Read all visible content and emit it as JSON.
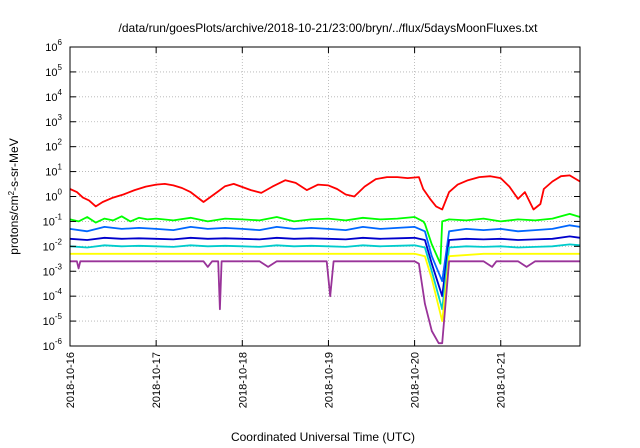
{
  "chart_data": {
    "type": "line",
    "title": "/data/run/goesPlots/archive/2018-10-21/23:00/bryn/../flux/5daysMoonFluxes.txt",
    "xlabel": "Coordinated Universal Time (UTC)",
    "ylabel": "protons/cm2-s-sr-MeV",
    "ylabel_parts": [
      "protons/cm",
      "2",
      "-s-sr-MeV"
    ],
    "y_scale": "log",
    "ylim": [
      1e-06,
      1000000.0
    ],
    "y_ticks": [
      {
        "value": 1e-06,
        "label": "10",
        "exp": "-6"
      },
      {
        "value": 1e-05,
        "label": "10",
        "exp": "-5"
      },
      {
        "value": 0.0001,
        "label": "10",
        "exp": "-4"
      },
      {
        "value": 0.001,
        "label": "10",
        "exp": "-3"
      },
      {
        "value": 0.01,
        "label": "10",
        "exp": "-2"
      },
      {
        "value": 0.1,
        "label": "10",
        "exp": "-1"
      },
      {
        "value": 1.0,
        "label": "10",
        "exp": "0"
      },
      {
        "value": 10.0,
        "label": "10",
        "exp": "1"
      },
      {
        "value": 100.0,
        "label": "10",
        "exp": "2"
      },
      {
        "value": 1000.0,
        "label": "10",
        "exp": "3"
      },
      {
        "value": 10000.0,
        "label": "10",
        "exp": "4"
      },
      {
        "value": 100000.0,
        "label": "10",
        "exp": "5"
      },
      {
        "value": 1000000.0,
        "label": "10",
        "exp": "6"
      }
    ],
    "xlim": [
      0,
      5.92
    ],
    "x_ticks": [
      {
        "value": 0,
        "label": "2018-10-16"
      },
      {
        "value": 1,
        "label": "2018-10-17"
      },
      {
        "value": 2,
        "label": "2018-10-18"
      },
      {
        "value": 3,
        "label": "2018-10-19"
      },
      {
        "value": 4,
        "label": "2018-10-20"
      },
      {
        "value": 5,
        "label": "2018-10-21"
      }
    ],
    "grid": true,
    "series": [
      {
        "color": "#ff0000",
        "x": [
          0,
          0.08,
          0.15,
          0.22,
          0.3,
          0.38,
          0.5,
          0.62,
          0.75,
          0.88,
          1.0,
          1.1,
          1.2,
          1.3,
          1.4,
          1.55,
          1.62,
          1.72,
          1.8,
          1.9,
          2.0,
          2.1,
          2.22,
          2.35,
          2.5,
          2.62,
          2.75,
          2.88,
          3.0,
          3.1,
          3.2,
          3.3,
          3.42,
          3.55,
          3.68,
          3.8,
          3.92,
          4.05,
          4.1,
          4.18,
          4.25,
          4.32,
          4.4,
          4.5,
          4.62,
          4.75,
          4.88,
          5.0,
          5.1,
          5.2,
          5.28,
          5.38,
          5.46,
          5.5,
          5.6,
          5.7,
          5.8,
          5.92
        ],
        "values": [
          2.0,
          1.5,
          0.9,
          0.7,
          0.4,
          0.6,
          0.9,
          1.2,
          1.8,
          2.5,
          3.0,
          3.2,
          2.8,
          2.2,
          1.5,
          0.6,
          0.9,
          1.6,
          2.6,
          3.2,
          2.4,
          1.8,
          1.4,
          2.5,
          4.5,
          3.5,
          1.8,
          3.0,
          2.8,
          2.0,
          1.2,
          1.0,
          2.5,
          5.0,
          6.0,
          6.0,
          5.5,
          6.0,
          2.0,
          0.8,
          0.4,
          0.3,
          1.5,
          3.0,
          4.5,
          6.0,
          6.5,
          5.5,
          2.5,
          0.8,
          1.5,
          0.3,
          0.5,
          2.0,
          4.0,
          6.5,
          7.0,
          4.0
        ]
      },
      {
        "color": "#00ff00",
        "x": [
          0,
          0.1,
          0.2,
          0.3,
          0.4,
          0.5,
          0.6,
          0.7,
          0.8,
          0.9,
          1.0,
          1.2,
          1.4,
          1.6,
          1.8,
          2.0,
          2.2,
          2.4,
          2.6,
          2.8,
          3.0,
          3.2,
          3.4,
          3.6,
          3.8,
          4.0,
          4.1,
          4.12,
          4.2,
          4.3,
          4.32,
          4.4,
          4.6,
          4.8,
          5.0,
          5.2,
          5.4,
          5.6,
          5.8,
          5.92
        ],
        "values": [
          0.12,
          0.1,
          0.15,
          0.09,
          0.13,
          0.11,
          0.16,
          0.1,
          0.14,
          0.12,
          0.13,
          0.11,
          0.14,
          0.1,
          0.13,
          0.12,
          0.11,
          0.15,
          0.1,
          0.12,
          0.13,
          0.11,
          0.14,
          0.12,
          0.13,
          0.15,
          0.1,
          0.08,
          0.012,
          0.002,
          0.1,
          0.12,
          0.11,
          0.13,
          0.1,
          0.12,
          0.11,
          0.13,
          0.2,
          0.15
        ]
      },
      {
        "color": "#0066ff",
        "x": [
          0,
          0.2,
          0.4,
          0.6,
          0.8,
          1.0,
          1.2,
          1.4,
          1.6,
          1.8,
          2.0,
          2.2,
          2.4,
          2.6,
          2.8,
          3.0,
          3.2,
          3.4,
          3.6,
          3.8,
          4.0,
          4.12,
          4.2,
          4.32,
          4.4,
          4.6,
          4.8,
          5.0,
          5.2,
          5.4,
          5.6,
          5.8,
          5.92
        ],
        "values": [
          0.05,
          0.04,
          0.06,
          0.05,
          0.055,
          0.05,
          0.045,
          0.06,
          0.05,
          0.055,
          0.05,
          0.045,
          0.06,
          0.05,
          0.055,
          0.05,
          0.045,
          0.06,
          0.05,
          0.055,
          0.06,
          0.04,
          0.004,
          0.0004,
          0.04,
          0.05,
          0.045,
          0.05,
          0.04,
          0.045,
          0.05,
          0.07,
          0.06
        ]
      },
      {
        "color": "#0000cc",
        "x": [
          0,
          0.2,
          0.4,
          0.6,
          0.8,
          1.0,
          1.2,
          1.4,
          1.6,
          1.8,
          2.0,
          2.2,
          2.4,
          2.6,
          2.8,
          3.0,
          3.2,
          3.4,
          3.6,
          3.8,
          4.0,
          4.12,
          4.2,
          4.32,
          4.4,
          4.6,
          4.8,
          5.0,
          5.2,
          5.4,
          5.6,
          5.8,
          5.92
        ],
        "values": [
          0.02,
          0.018,
          0.022,
          0.02,
          0.021,
          0.02,
          0.019,
          0.022,
          0.02,
          0.021,
          0.02,
          0.019,
          0.022,
          0.02,
          0.021,
          0.02,
          0.019,
          0.022,
          0.02,
          0.021,
          0.022,
          0.018,
          0.002,
          0.0001,
          0.018,
          0.02,
          0.019,
          0.02,
          0.018,
          0.019,
          0.02,
          0.025,
          0.022
        ]
      },
      {
        "color": "#00cccc",
        "x": [
          0,
          0.2,
          0.4,
          0.6,
          0.8,
          1.0,
          1.2,
          1.4,
          1.6,
          1.8,
          2.0,
          2.2,
          2.4,
          2.6,
          2.8,
          3.0,
          3.2,
          3.4,
          3.6,
          3.8,
          4.0,
          4.12,
          4.2,
          4.32,
          4.4,
          4.6,
          4.8,
          5.0,
          5.2,
          5.4,
          5.6,
          5.8,
          5.92
        ],
        "values": [
          0.01,
          0.009,
          0.011,
          0.01,
          0.0105,
          0.01,
          0.0095,
          0.011,
          0.01,
          0.0105,
          0.01,
          0.0095,
          0.011,
          0.01,
          0.0105,
          0.01,
          0.0095,
          0.011,
          0.01,
          0.0105,
          0.011,
          0.009,
          0.001,
          3e-05,
          0.009,
          0.01,
          0.0095,
          0.01,
          0.009,
          0.0095,
          0.01,
          0.012,
          0.011
        ]
      },
      {
        "color": "#ffff00",
        "x": [
          0,
          0.5,
          1.0,
          1.5,
          2.0,
          2.5,
          3.0,
          3.5,
          4.0,
          4.12,
          4.2,
          4.32,
          4.4,
          4.8,
          5.2,
          5.6,
          5.92
        ],
        "values": [
          0.005,
          0.005,
          0.005,
          0.005,
          0.005,
          0.005,
          0.005,
          0.005,
          0.005,
          0.004,
          0.0005,
          1e-05,
          0.004,
          0.005,
          0.005,
          0.005,
          0.005
        ]
      },
      {
        "color": "#993399",
        "x": [
          0,
          0.08,
          0.1,
          0.12,
          0.3,
          0.5,
          0.7,
          0.9,
          1.0,
          1.2,
          1.4,
          1.55,
          1.6,
          1.65,
          1.72,
          1.74,
          1.76,
          1.8,
          2.0,
          2.2,
          2.3,
          2.4,
          2.6,
          2.8,
          2.98,
          3.02,
          3.06,
          3.2,
          3.4,
          3.6,
          3.8,
          4.0,
          4.05,
          4.12,
          4.2,
          4.28,
          4.32,
          4.4,
          4.6,
          4.8,
          4.9,
          4.95,
          5.0,
          5.2,
          5.3,
          5.4,
          5.6,
          5.8,
          5.92
        ],
        "values": [
          0.0025,
          0.0025,
          0.0013,
          0.0025,
          0.0025,
          0.0025,
          0.0025,
          0.0025,
          0.0025,
          0.0025,
          0.0025,
          0.0025,
          0.0015,
          0.0025,
          0.0025,
          3e-05,
          0.0025,
          0.0025,
          0.0025,
          0.0025,
          0.0015,
          0.0025,
          0.0025,
          0.0025,
          0.0025,
          0.0001,
          0.0025,
          0.0025,
          0.0025,
          0.0025,
          0.0025,
          0.0025,
          0.002,
          5e-05,
          4e-06,
          1.3e-06,
          1.3e-06,
          0.0025,
          0.0025,
          0.0025,
          0.0015,
          0.0025,
          0.0025,
          0.0025,
          0.0015,
          0.0025,
          0.0025,
          0.0025,
          0.0025
        ]
      }
    ]
  }
}
